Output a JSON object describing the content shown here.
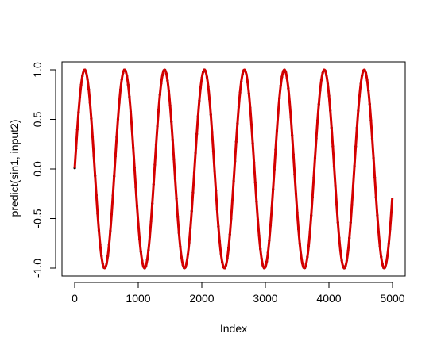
{
  "chart_data": {
    "type": "scatter",
    "title": "",
    "xlabel": "Index",
    "ylabel": "predict(sin1, input2)",
    "xlim": [
      -200,
      5200
    ],
    "ylim": [
      -1.08,
      1.08
    ],
    "x_ticks": [
      0,
      1000,
      2000,
      3000,
      4000,
      5000
    ],
    "x_tick_labels": [
      "0",
      "1000",
      "2000",
      "3000",
      "4000",
      "5000"
    ],
    "y_ticks": [
      -1.0,
      -0.5,
      0.0,
      0.5,
      1.0
    ],
    "y_tick_labels": [
      "-1.0",
      "-0.5",
      "0.0",
      "0.5",
      "1.0"
    ],
    "grid": false,
    "series": [
      {
        "color": "#000000",
        "marker": "points",
        "function": "sin",
        "x_range": [
          1,
          5000
        ],
        "period": 628.3,
        "values_sample": [
          {
            "x": 0,
            "y": 0.0
          },
          {
            "x": 157,
            "y": 1.0
          },
          {
            "x": 471,
            "y": -1.0
          },
          {
            "x": 785,
            "y": 1.0
          },
          {
            "x": 5000,
            "y": -0.26
          }
        ]
      },
      {
        "color": "#d40000",
        "marker": "line",
        "function": "sin",
        "x_range": [
          1,
          5000
        ],
        "period": 628.3,
        "values_sample": [
          {
            "x": 0,
            "y": 0.0
          },
          {
            "x": 157,
            "y": 1.0
          },
          {
            "x": 471,
            "y": -1.0
          },
          {
            "x": 785,
            "y": 1.0
          },
          {
            "x": 5000,
            "y": -0.26
          }
        ]
      }
    ]
  }
}
